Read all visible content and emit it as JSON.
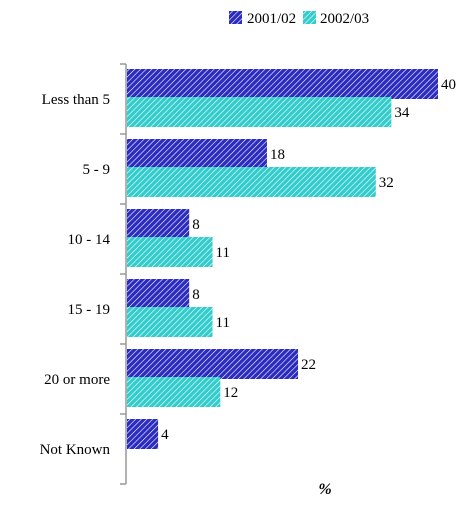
{
  "chart_data": {
    "type": "bar",
    "orientation": "horizontal",
    "categories": [
      "Less than 5",
      "5 - 9",
      "10 - 14",
      "15 - 19",
      "20 or more",
      "Not Known"
    ],
    "series": [
      {
        "name": "2001/02",
        "values": [
          40,
          18,
          8,
          8,
          22,
          4
        ],
        "color": "#2b2bbf",
        "pattern": "diagonal-hatch"
      },
      {
        "name": "2002/03",
        "values": [
          34,
          32,
          11,
          11,
          12,
          null
        ],
        "color": "#33cccc",
        "pattern": "diagonal-hatch"
      }
    ],
    "xlabel": "%",
    "ylabel": "",
    "xlim": [
      0,
      40
    ],
    "grid": false,
    "legend": "top-right",
    "data_labels": true
  }
}
